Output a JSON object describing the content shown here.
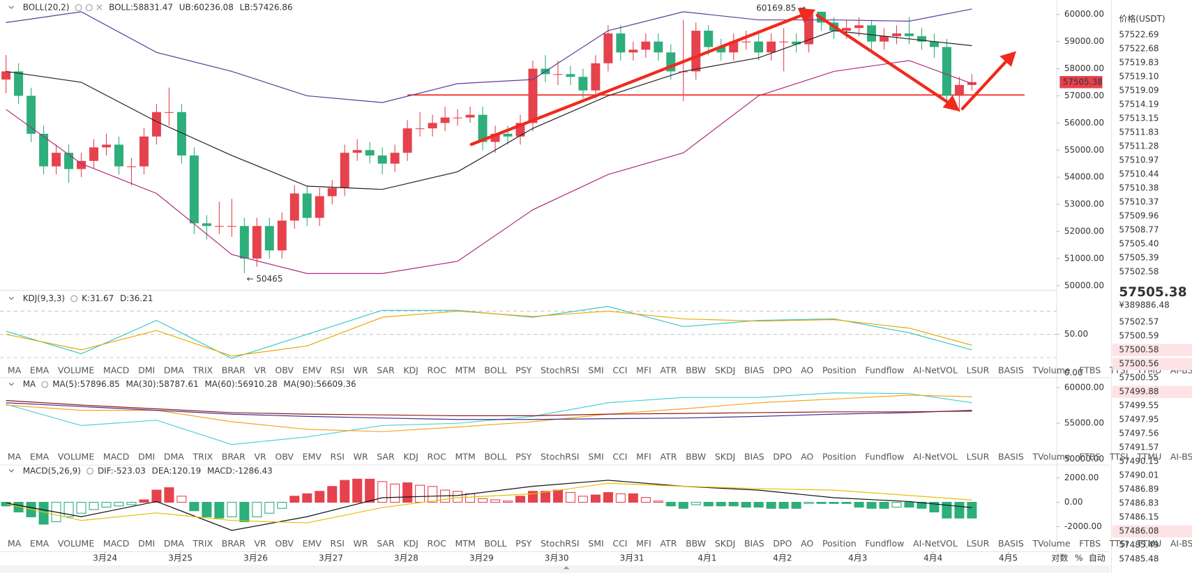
{
  "chart_data": [
    {
      "type": "candlestick",
      "header": "BOLL(20,2)",
      "up_color": "#e5424d",
      "down_color": "#2dae7a",
      "xlim": [
        -0.48,
        83.76
      ],
      "ylim": [
        49830,
        60530
      ],
      "yticks": [
        {
          "value": 50000,
          "label": "50000.00"
        },
        {
          "value": 51000,
          "label": "51000.00"
        },
        {
          "value": 52000,
          "label": "52000.00"
        },
        {
          "value": 53000,
          "label": "53000.00"
        },
        {
          "value": 54000,
          "label": "54000.00"
        },
        {
          "value": 55000,
          "label": "55000.00"
        },
        {
          "value": 56000,
          "label": "56000.00"
        },
        {
          "value": 57000,
          "label": "57000.00"
        },
        {
          "value": 58000,
          "label": "58000.00"
        },
        {
          "value": 59000,
          "label": "59000.00"
        },
        {
          "value": 60000,
          "label": "60000.00"
        }
      ],
      "xticks": [
        {
          "value": 7.9,
          "label": "3月24"
        },
        {
          "value": 13.9,
          "label": "3月25"
        },
        {
          "value": 19.9,
          "label": "3月26"
        },
        {
          "value": 25.9,
          "label": "3月27"
        },
        {
          "value": 31.9,
          "label": "3月28"
        },
        {
          "value": 37.9,
          "label": "3月29"
        },
        {
          "value": 43.9,
          "label": "3月30"
        },
        {
          "value": 49.9,
          "label": "3月31"
        },
        {
          "value": 55.9,
          "label": "4月1"
        },
        {
          "value": 61.9,
          "label": "4月2"
        },
        {
          "value": 67.9,
          "label": "4月3"
        },
        {
          "value": 73.9,
          "label": "4月4"
        },
        {
          "value": 79.9,
          "label": "4月5"
        }
      ],
      "open": [
        57600,
        57900,
        57000,
        55600,
        54400,
        54900,
        54300,
        54600,
        55100,
        55200,
        54400,
        54400,
        55500,
        56400,
        56400,
        54800,
        52300,
        52200,
        52200,
        52200,
        51000,
        52200,
        51300,
        52400,
        53400,
        52500,
        53300,
        53600,
        54900,
        55000,
        54800,
        54500,
        54900,
        55800,
        55800,
        56000,
        56200,
        56200,
        56300,
        55300,
        55600,
        55500,
        56000,
        58000,
        57800,
        57800,
        57700,
        57200,
        58200,
        59300,
        58600,
        58700,
        59000,
        58600,
        57900,
        57900,
        59400,
        58800,
        58600,
        59000,
        59000,
        58600,
        59000,
        59000,
        58900,
        60100,
        59700,
        59400,
        59500,
        59600,
        59000,
        59200,
        59300,
        59200,
        59000,
        58800,
        57000,
        57400
      ],
      "high": [
        58500,
        58200,
        57300,
        55900,
        55200,
        55200,
        54900,
        55400,
        55600,
        55500,
        54700,
        55800,
        56700,
        57300,
        56700,
        55100,
        52600,
        53100,
        53200,
        52500,
        52500,
        52500,
        52700,
        53700,
        53700,
        53600,
        53900,
        55200,
        55400,
        55300,
        55100,
        55200,
        56100,
        56400,
        56300,
        56600,
        56500,
        56600,
        56600,
        55900,
        55900,
        56300,
        58300,
        58500,
        58300,
        58100,
        58000,
        58500,
        59600,
        59600,
        59000,
        59300,
        59300,
        58900,
        59800,
        59700,
        59600,
        59100,
        59300,
        59400,
        59300,
        59300,
        59500,
        59300,
        60169.85,
        60000,
        59900,
        59800,
        59900,
        59800,
        59500,
        59600,
        59900,
        59500,
        59300,
        59100,
        57700,
        57800
      ],
      "low": [
        57100,
        56700,
        55300,
        54100,
        54100,
        53800,
        54000,
        54300,
        54800,
        54100,
        53700,
        54100,
        55200,
        55900,
        54500,
        51900,
        51700,
        51900,
        51800,
        50465,
        50700,
        51000,
        51000,
        52100,
        52200,
        52200,
        53000,
        53300,
        54600,
        54500,
        54100,
        54200,
        54600,
        55500,
        55500,
        55700,
        55900,
        56000,
        55000,
        54900,
        55200,
        55200,
        55700,
        57500,
        57400,
        57400,
        56900,
        56900,
        57900,
        58300,
        58300,
        58400,
        58300,
        57600,
        56800,
        57600,
        58500,
        58300,
        58300,
        58700,
        58300,
        58300,
        57900,
        58600,
        58600,
        59400,
        59100,
        59100,
        59200,
        58700,
        58700,
        58900,
        58900,
        58700,
        58400,
        56700,
        56400,
        57200
      ],
      "close": [
        57900,
        57000,
        55600,
        54400,
        54900,
        54300,
        54600,
        55100,
        55200,
        54400,
        54400,
        55500,
        56400,
        56400,
        54800,
        52300,
        52200,
        52200,
        52200,
        51000,
        52200,
        51300,
        52400,
        53400,
        52500,
        53300,
        53600,
        54900,
        55000,
        54800,
        54500,
        54900,
        55800,
        55800,
        56000,
        56200,
        56200,
        56300,
        55300,
        55600,
        55500,
        56000,
        58000,
        57800,
        57800,
        57700,
        57200,
        58200,
        59300,
        58600,
        58700,
        59000,
        58600,
        57900,
        57900,
        59400,
        58800,
        58600,
        59000,
        59000,
        58600,
        59000,
        59000,
        58900,
        60100,
        59700,
        59400,
        59500,
        59600,
        59000,
        59200,
        59300,
        59200,
        59000,
        58800,
        57000,
        57400,
        57505.38
      ],
      "series": [
        {
          "name": "BOLL:58831.47",
          "color": "#222222",
          "x": [
            0,
            6,
            12,
            18,
            24,
            30,
            36,
            42,
            48,
            54,
            60,
            66,
            72,
            77
          ],
          "values": [
            57900,
            57500,
            56050,
            54800,
            53670,
            53550,
            54200,
            55800,
            57000,
            57900,
            58400,
            59400,
            59100,
            58850
          ]
        },
        {
          "name": "UB:60236.08",
          "color": "#5b3a9a",
          "x": [
            0,
            6,
            12,
            18,
            24,
            30,
            36,
            42,
            48,
            54,
            60,
            66,
            72,
            77
          ],
          "values": [
            59700,
            60100,
            58600,
            57900,
            57000,
            56750,
            57450,
            57600,
            59400,
            60100,
            59800,
            59800,
            59750,
            60200
          ]
        },
        {
          "name": "LB:57426.86",
          "color": "#b0287a",
          "x": [
            0,
            6,
            12,
            18,
            24,
            30,
            36,
            42,
            48,
            54,
            60,
            66,
            72,
            77
          ],
          "values": [
            56500,
            54500,
            53400,
            51150,
            50450,
            50450,
            50900,
            52800,
            54100,
            54900,
            57000,
            57900,
            58300,
            57450
          ]
        }
      ],
      "horizontal_line": 57030,
      "annotations": [
        "60169.85 →",
        "← 50465"
      ]
    },
    {
      "type": "line",
      "header": "KDJ(9,3,3)",
      "ylim": [
        -5.9,
        103.9
      ],
      "yticks": [
        {
          "value": 0,
          "label": "0.00"
        },
        {
          "value": 50,
          "label": "50.00"
        }
      ],
      "levels": [
        20,
        50,
        80
      ],
      "series": [
        {
          "name": "K:31.67",
          "color": "#3cc8c8",
          "x": [
            0,
            6,
            12,
            18,
            24,
            30,
            36,
            42,
            48,
            54,
            60,
            66,
            72,
            77
          ],
          "values": [
            54,
            25,
            68,
            19,
            50,
            81,
            81,
            72,
            86,
            60,
            68,
            70,
            52,
            30
          ]
        },
        {
          "name": "D:36.21",
          "color": "#e8a800",
          "x": [
            0,
            6,
            12,
            18,
            24,
            30,
            36,
            42,
            48,
            54,
            60,
            66,
            72,
            77
          ],
          "values": [
            50,
            30,
            55,
            22,
            35,
            72,
            80,
            73,
            80,
            70,
            67,
            69,
            58,
            36
          ]
        }
      ]
    },
    {
      "type": "line",
      "header": "MA",
      "ylim": [
        49150,
        61280
      ],
      "yticks": [
        {
          "value": 50000,
          "label": "50000.00"
        },
        {
          "value": 55000,
          "label": "55000.00"
        },
        {
          "value": 60000,
          "label": "60000.00"
        }
      ],
      "series": [
        {
          "name": "MA(5):57896.85",
          "color": "#4fd1d0",
          "x": [
            0,
            6,
            12,
            18,
            24,
            30,
            36,
            42,
            48,
            54,
            60,
            66,
            72,
            77
          ],
          "values": [
            57660,
            54680,
            55430,
            52020,
            53090,
            54680,
            55000,
            55960,
            57870,
            58620,
            58620,
            59260,
            59150,
            57870
          ]
        },
        {
          "name": "MA(30):58787.61",
          "color": "#f5a623",
          "x": [
            0,
            6,
            12,
            18,
            24,
            30,
            36,
            42,
            48,
            54,
            60,
            66,
            72,
            77
          ],
          "values": [
            57550,
            56810,
            56810,
            55210,
            54150,
            53830,
            54470,
            55210,
            56280,
            57020,
            57870,
            58400,
            58940,
            58720
          ]
        },
        {
          "name": "MA(60):56910.28",
          "color": "#4a2c8c",
          "x": [
            0,
            6,
            12,
            18,
            24,
            30,
            36,
            42,
            48,
            54,
            60,
            66,
            72,
            77
          ],
          "values": [
            57870,
            57340,
            56810,
            56280,
            55960,
            55740,
            55530,
            55530,
            55640,
            55740,
            55960,
            56280,
            56490,
            56810
          ]
        },
        {
          "name": "MA(90):56609.36",
          "color": "#8b1a1a",
          "x": [
            0,
            6,
            12,
            18,
            24,
            30,
            36,
            42,
            48,
            54,
            60,
            66,
            72,
            77
          ],
          "values": [
            58190,
            57550,
            57020,
            56490,
            56280,
            56170,
            56060,
            56060,
            56280,
            56380,
            56490,
            56600,
            56600,
            56700
          ]
        }
      ]
    },
    {
      "type": "macd",
      "header": "MACD(5,26,9)",
      "ylim": [
        -4060,
        3060
      ],
      "up_color": "#e5424d",
      "down_color": "#2dae7a",
      "yticks": [
        {
          "value": -2000,
          "label": "-2000.00"
        },
        {
          "value": 0,
          "label": "0.00"
        },
        {
          "value": 2000,
          "label": "2000.00"
        }
      ],
      "series": [
        {
          "name": "DIF:-523.03",
          "color": "#111111",
          "x": [
            0,
            6,
            12,
            18,
            24,
            30,
            36,
            42,
            48,
            54,
            60,
            66,
            72,
            77
          ],
          "values": [
            -60,
            -1190,
            60,
            -2310,
            -1190,
            375,
            560,
            1310,
            1810,
            1310,
            1000,
            375,
            60,
            -440
          ]
        },
        {
          "name": "DEA:120.19",
          "color": "#e6c000",
          "x": [
            0,
            6,
            12,
            18,
            24,
            30,
            36,
            42,
            48,
            54,
            60,
            66,
            72,
            77
          ],
          "values": [
            -125,
            -1500,
            -875,
            -1500,
            -1690,
            -440,
            375,
            690,
            1560,
            1310,
            1125,
            1000,
            560,
            190
          ]
        },
        {
          "name": "MACD:-1286.43",
          "color": "#2dae7a",
          "values": [
            -300,
            -800,
            -1200,
            -1800,
            -1600,
            -1200,
            -900,
            -600,
            -400,
            -300,
            -200,
            200,
            1000,
            1200,
            500,
            -700,
            -1200,
            -1300,
            -1200,
            -1600,
            -1200,
            -900,
            -500,
            500,
            700,
            900,
            1300,
            1800,
            1900,
            1900,
            1700,
            1500,
            1600,
            1400,
            1300,
            1000,
            900,
            700,
            300,
            200,
            100,
            500,
            900,
            900,
            1000,
            800,
            500,
            600,
            800,
            700,
            700,
            400,
            100,
            -300,
            -500,
            -200,
            -300,
            -300,
            -300,
            -400,
            -400,
            -500,
            -500,
            -500,
            -100,
            -100,
            -100,
            -100,
            -400,
            -500,
            -500,
            -400,
            -400,
            -500,
            -800,
            -1300,
            -1300,
            -1300
          ]
        }
      ]
    }
  ],
  "tabs": [
    "MA",
    "EMA",
    "VOLUME",
    "MACD",
    "DMI",
    "DMA",
    "TRIX",
    "BRAR",
    "VR",
    "OBV",
    "EMV",
    "RSI",
    "WR",
    "SAR",
    "KDJ",
    "ROC",
    "MTM",
    "BOLL",
    "PSY",
    "StochRSI",
    "SMI",
    "CCI",
    "MFI",
    "ATR",
    "BBW",
    "SKDJ",
    "BIAS",
    "DPO",
    "AO",
    "Position",
    "Fundflow",
    "AI-NetVOL",
    "LSUR",
    "BASIS",
    "TVolume",
    "FTBS",
    "TTSI",
    "TTMU",
    "AI-BSI"
  ],
  "tab_rows": [
    {
      "active": 14,
      "muted": [
        3,
        31,
        37,
        38
      ]
    },
    {
      "active": 0,
      "muted": [
        3,
        14,
        31,
        37,
        38
      ]
    },
    {
      "active": 3,
      "muted": [
        14,
        31,
        37,
        38
      ]
    }
  ],
  "axis_options": [
    "对数",
    "%",
    "自动"
  ],
  "order_book": {
    "title": "价格(USDT)",
    "asks": [
      "57522.69",
      "57522.68",
      "57519.83",
      "57519.10",
      "57519.09",
      "57514.19",
      "57513.15",
      "57511.83",
      "57511.28",
      "57510.97",
      "57510.44",
      "57510.38",
      "57510.37",
      "57509.96",
      "57508.77",
      "57505.40",
      "57505.39",
      "57502.58"
    ],
    "last": "57505.38",
    "last_cny": "¥389886.48",
    "bids": [
      "57502.57",
      "57500.59",
      "57500.58",
      "57500.56",
      "57500.55",
      "57499.88",
      "57499.55",
      "57497.95",
      "57497.56",
      "57491.57",
      "57490.15",
      "57490.01",
      "57486.89",
      "57486.83",
      "57486.15",
      "57486.08",
      "57485.49",
      "57485.48"
    ]
  }
}
